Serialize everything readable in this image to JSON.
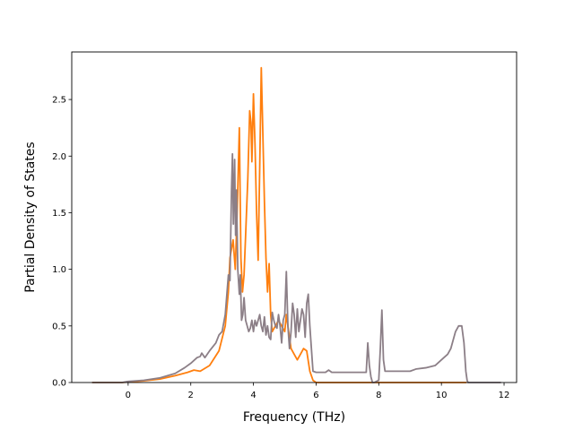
{
  "chart_data": {
    "type": "line",
    "title": "",
    "xlabel": "Frequency (THz)",
    "ylabel": "Partial Density of States",
    "xlim": [
      -1.8,
      12.4
    ],
    "ylim": [
      0,
      2.92
    ],
    "xticks": [
      0,
      2,
      4,
      6,
      8,
      10,
      12
    ],
    "yticks": [
      0.0,
      0.5,
      1.0,
      1.5,
      2.0,
      2.5
    ],
    "ytick_labels": [
      "0.0",
      "0.5",
      "1.0",
      "1.5",
      "2.0",
      "2.5"
    ],
    "grid": false,
    "legend": "none",
    "series": [
      {
        "color": "#ff7f0e",
        "x": [
          -1.15,
          -0.2,
          0.0,
          0.5,
          1.0,
          1.5,
          1.9,
          2.1,
          2.3,
          2.6,
          2.9,
          3.1,
          3.2,
          3.25,
          3.35,
          3.42,
          3.48,
          3.55,
          3.6,
          3.65,
          3.7,
          3.75,
          3.82,
          3.88,
          3.92,
          3.95,
          4.0,
          4.05,
          4.1,
          4.15,
          4.2,
          4.25,
          4.3,
          4.35,
          4.4,
          4.45,
          4.5,
          4.55,
          4.6,
          4.7,
          4.8,
          4.9,
          5.0,
          5.05,
          5.1,
          5.2,
          5.3,
          5.4,
          5.5,
          5.6,
          5.7,
          5.8,
          5.9,
          6.0,
          7.0,
          8.0,
          9.0,
          10.0,
          10.5,
          10.8
        ],
        "y": [
          0.0,
          0.0,
          0.005,
          0.015,
          0.03,
          0.06,
          0.09,
          0.11,
          0.1,
          0.15,
          0.28,
          0.5,
          0.8,
          1.1,
          1.26,
          1.0,
          1.5,
          2.25,
          1.1,
          0.8,
          0.95,
          1.3,
          1.8,
          2.4,
          2.3,
          1.95,
          2.55,
          2.1,
          1.5,
          1.08,
          1.9,
          2.78,
          2.2,
          1.6,
          1.1,
          0.8,
          1.05,
          0.6,
          0.45,
          0.5,
          0.55,
          0.5,
          0.45,
          0.6,
          0.5,
          0.3,
          0.25,
          0.2,
          0.25,
          0.3,
          0.28,
          0.1,
          0.02,
          0.0,
          0.0,
          0.0,
          0.0,
          0.0,
          0.0,
          0.0
        ]
      },
      {
        "color": "#8c7f87",
        "x": [
          -1.15,
          -0.2,
          0.0,
          0.5,
          1.0,
          1.5,
          1.8,
          2.0,
          2.2,
          2.3,
          2.35,
          2.45,
          2.6,
          2.8,
          2.9,
          3.0,
          3.1,
          3.2,
          3.25,
          3.3,
          3.33,
          3.36,
          3.4,
          3.43,
          3.46,
          3.5,
          3.55,
          3.58,
          3.62,
          3.66,
          3.7,
          3.75,
          3.8,
          3.85,
          3.9,
          3.95,
          4.0,
          4.05,
          4.1,
          4.15,
          4.2,
          4.25,
          4.3,
          4.35,
          4.4,
          4.45,
          4.5,
          4.55,
          4.6,
          4.65,
          4.7,
          4.75,
          4.8,
          4.85,
          4.9,
          4.95,
          5.0,
          5.05,
          5.1,
          5.15,
          5.2,
          5.25,
          5.3,
          5.35,
          5.4,
          5.45,
          5.5,
          5.55,
          5.6,
          5.65,
          5.7,
          5.75,
          5.8,
          5.85,
          5.9,
          6.0,
          6.3,
          6.4,
          6.5,
          7.0,
          7.5,
          7.6,
          7.65,
          7.7,
          7.75,
          7.8,
          7.85,
          8.0,
          8.05,
          8.1,
          8.15,
          8.2,
          8.3,
          8.5,
          9.0,
          9.2,
          9.5,
          9.8,
          10.0,
          10.2,
          10.3,
          10.45,
          10.55,
          10.65,
          10.72,
          10.78,
          10.82,
          10.85,
          11.9
        ],
        "y": [
          0.0,
          0.0,
          0.01,
          0.02,
          0.04,
          0.08,
          0.13,
          0.17,
          0.22,
          0.23,
          0.26,
          0.22,
          0.28,
          0.35,
          0.42,
          0.45,
          0.6,
          0.95,
          0.9,
          1.7,
          2.02,
          1.4,
          1.97,
          1.3,
          1.7,
          1.0,
          0.78,
          0.95,
          0.55,
          0.6,
          0.75,
          0.55,
          0.5,
          0.45,
          0.48,
          0.55,
          0.45,
          0.55,
          0.5,
          0.55,
          0.6,
          0.5,
          0.45,
          0.58,
          0.42,
          0.5,
          0.4,
          0.38,
          0.62,
          0.55,
          0.5,
          0.48,
          0.6,
          0.5,
          0.35,
          0.55,
          0.6,
          0.98,
          0.5,
          0.3,
          0.45,
          0.7,
          0.6,
          0.4,
          0.65,
          0.45,
          0.55,
          0.65,
          0.6,
          0.4,
          0.7,
          0.78,
          0.5,
          0.3,
          0.1,
          0.09,
          0.09,
          0.11,
          0.09,
          0.09,
          0.09,
          0.09,
          0.35,
          0.15,
          0.05,
          0.0,
          0.0,
          0.02,
          0.3,
          0.64,
          0.2,
          0.1,
          0.1,
          0.1,
          0.1,
          0.12,
          0.13,
          0.15,
          0.2,
          0.25,
          0.3,
          0.45,
          0.5,
          0.5,
          0.35,
          0.1,
          0.02,
          0.0,
          0.0
        ]
      }
    ]
  }
}
